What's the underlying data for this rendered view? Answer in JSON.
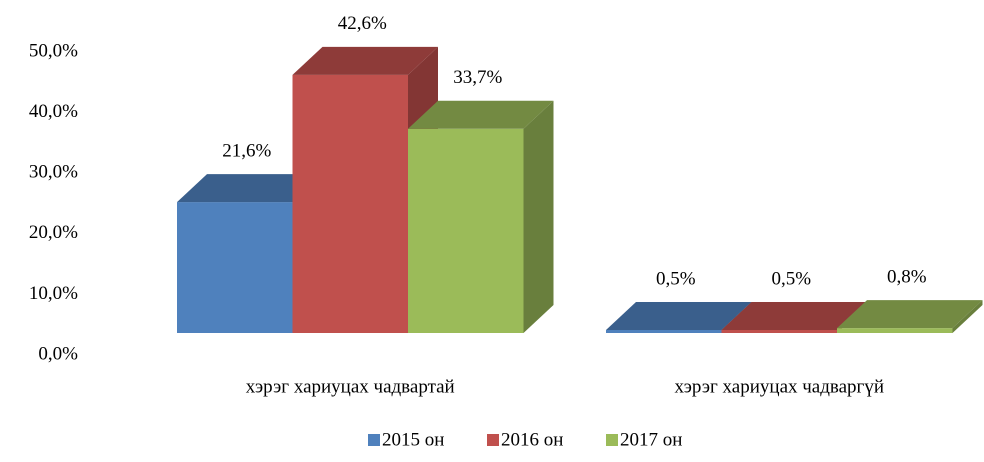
{
  "chart_data": {
    "type": "bar3d",
    "categories": [
      "хэрэг хариуцах чадвартай",
      "хэрэг хариуцах чадваргүй"
    ],
    "series": [
      {
        "name": "2015 он",
        "color": "#4f81bd",
        "values": [
          21.6,
          0.5
        ],
        "value_labels": [
          "21,6%",
          "0,5%"
        ]
      },
      {
        "name": "2016 он",
        "color": "#c0504d",
        "values": [
          42.6,
          0.5
        ],
        "value_labels": [
          "42,6%",
          "0,5%"
        ]
      },
      {
        "name": "2017 он",
        "color": "#9bbb59",
        "values": [
          33.7,
          0.8
        ],
        "value_labels": [
          "33,7%",
          "0,8%"
        ]
      }
    ],
    "ylim": [
      0,
      50
    ],
    "yticks": [
      {
        "value": 0,
        "label": "0,0%"
      },
      {
        "value": 10,
        "label": "10,0%"
      },
      {
        "value": 20,
        "label": "20,0%"
      },
      {
        "value": 30,
        "label": "30,0%"
      },
      {
        "value": 40,
        "label": "40,0%"
      },
      {
        "value": 50,
        "label": "50,0%"
      }
    ],
    "legend": "bottom"
  }
}
